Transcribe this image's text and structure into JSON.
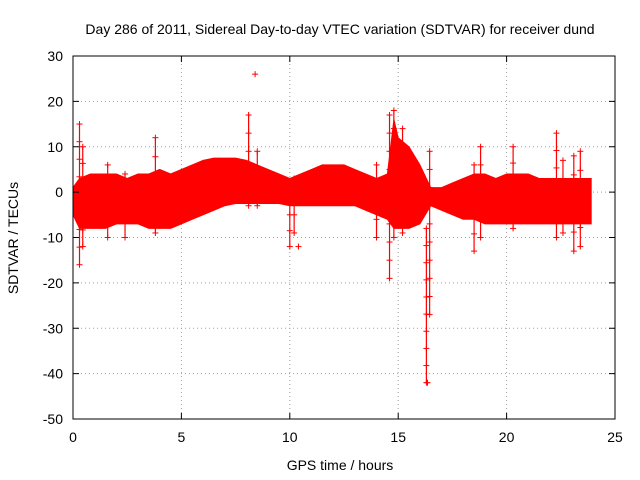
{
  "chart_data": {
    "type": "scatter",
    "title": "Day 286 of 2011, Sidereal Day-to-day VTEC variation (SDTVAR) for receiver dund",
    "xlabel": "GPS time / hours",
    "ylabel": "SDTVAR / TECUs",
    "xlim": [
      0,
      25
    ],
    "ylim": [
      -50,
      30
    ],
    "x_ticks": [
      0,
      5,
      10,
      15,
      20,
      25
    ],
    "y_ticks": [
      -50,
      -40,
      -30,
      -20,
      -10,
      0,
      10,
      20,
      30
    ],
    "x_tick_labels": [
      "0",
      "5",
      "10",
      "15",
      "20",
      "25"
    ],
    "y_tick_labels": [
      "-50",
      "-40",
      "-30",
      "-20",
      "-10",
      "0",
      "10",
      "20",
      "30"
    ],
    "grid": true,
    "marker": "+",
    "series_color": "#ff0000",
    "band": {
      "x": [
        0.0,
        0.3,
        0.8,
        1.5,
        2.0,
        2.5,
        3.0,
        3.5,
        4.0,
        4.5,
        5.0,
        5.5,
        6.0,
        6.5,
        7.0,
        7.5,
        8.0,
        8.5,
        9.0,
        9.5,
        10.0,
        10.5,
        11.0,
        11.5,
        12.0,
        12.5,
        13.0,
        13.5,
        14.0,
        14.5,
        14.8,
        15.0,
        15.5,
        16.0,
        16.5,
        17.0,
        17.5,
        18.0,
        18.5,
        19.0,
        19.5,
        20.0,
        20.5,
        21.0,
        21.5,
        22.0,
        22.5,
        23.0,
        23.5,
        23.9
      ],
      "upper": [
        1,
        3,
        4,
        4,
        4,
        3,
        4,
        4,
        5,
        4,
        5,
        6,
        7,
        7.5,
        7.5,
        7.5,
        7,
        6,
        5,
        4,
        3,
        4,
        5,
        6,
        6,
        6,
        5,
        4,
        3,
        4,
        16,
        12,
        10,
        6,
        1,
        1,
        2,
        3,
        4,
        4,
        3,
        4,
        4,
        4,
        3,
        3,
        3,
        3,
        3,
        3
      ],
      "lower": [
        -5,
        -8,
        -8,
        -8,
        -7,
        -7,
        -7,
        -8,
        -8,
        -8,
        -7,
        -6,
        -5,
        -4,
        -3,
        -2.5,
        -2.5,
        -2.5,
        -2.5,
        -2.5,
        -3,
        -3,
        -3,
        -3,
        -3,
        -3,
        -3,
        -4,
        -5,
        -6,
        -8,
        -8,
        -8,
        -7,
        -3,
        -4,
        -5,
        -6,
        -6,
        -7,
        -7,
        -7,
        -7,
        -7,
        -7,
        -7,
        -7,
        -7,
        -7,
        -7
      ]
    },
    "spikes": [
      {
        "x": 0.3,
        "y_min": -16,
        "y_max": 15
      },
      {
        "x": 0.45,
        "y_min": -12,
        "y_max": 10
      },
      {
        "x": 1.6,
        "y_min": -10,
        "y_max": 6
      },
      {
        "x": 2.4,
        "y_min": -10,
        "y_max": 4
      },
      {
        "x": 3.8,
        "y_min": -9,
        "y_max": 12
      },
      {
        "x": 8.1,
        "y_min": -3,
        "y_max": 17
      },
      {
        "x": 8.5,
        "y_min": -3,
        "y_max": 9
      },
      {
        "x": 10.0,
        "y_min": -12,
        "y_max": 2
      },
      {
        "x": 10.2,
        "y_min": -9,
        "y_max": 3
      },
      {
        "x": 14.0,
        "y_min": -10,
        "y_max": 6
      },
      {
        "x": 14.6,
        "y_min": -19,
        "y_max": 17
      },
      {
        "x": 14.8,
        "y_min": -10,
        "y_max": 18
      },
      {
        "x": 15.2,
        "y_min": -9,
        "y_max": 14
      },
      {
        "x": 16.3,
        "y_min": -42,
        "y_max": -8
      },
      {
        "x": 16.45,
        "y_min": -27,
        "y_max": 9
      },
      {
        "x": 18.5,
        "y_min": -13,
        "y_max": 6
      },
      {
        "x": 18.8,
        "y_min": -10,
        "y_max": 10
      },
      {
        "x": 20.3,
        "y_min": -8,
        "y_max": 10
      },
      {
        "x": 22.3,
        "y_min": -10,
        "y_max": 13
      },
      {
        "x": 22.6,
        "y_min": -9,
        "y_max": 7
      },
      {
        "x": 23.1,
        "y_min": -13,
        "y_max": 8
      },
      {
        "x": 23.4,
        "y_min": -12,
        "y_max": 9
      }
    ],
    "outliers": [
      {
        "x": 8.4,
        "y": 26
      },
      {
        "x": 10.4,
        "y": -12
      },
      {
        "x": 16.35,
        "y": -42
      }
    ]
  }
}
